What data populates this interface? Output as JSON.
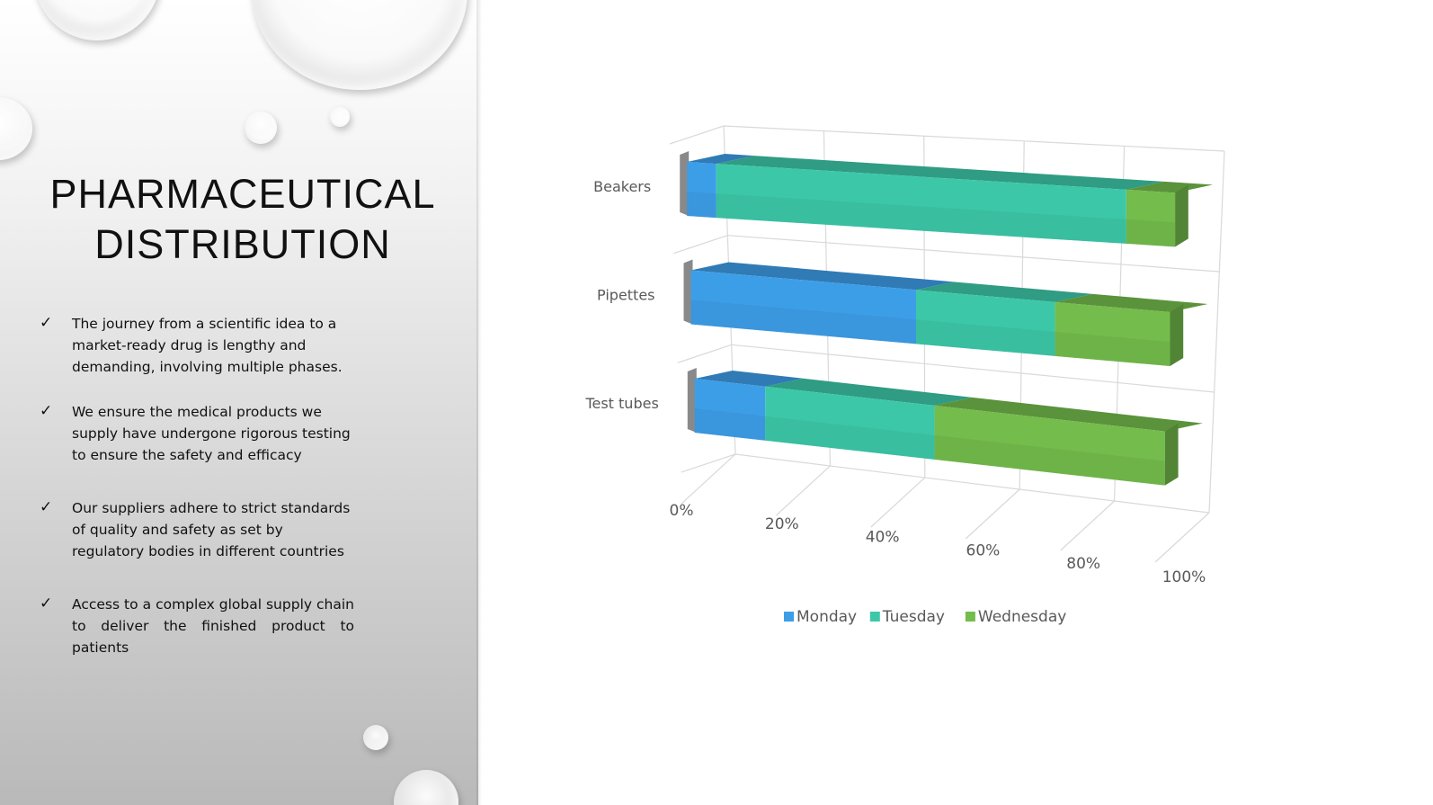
{
  "slide": {
    "title": "PHARMACEUTICAL\nDISTRIBUTION",
    "bullets": [
      "The journey from a scientific idea to a market-ready drug is lengthy and demanding, involving multiple phases.",
      "We ensure the medical products we supply have undergone rigorous testing to ensure the safety and efficacy",
      "Our suppliers adhere to strict standards of quality and safety as set by regulatory bodies in different countries",
      "Access to a complex global supply chain to deliver the finished product to patients"
    ],
    "check_glyph": "✓"
  },
  "chart_data": {
    "type": "bar",
    "subtype": "3d-100%-stacked-horizontal",
    "categories": [
      "Beakers",
      "Pipettes",
      "Test tubes"
    ],
    "series": [
      {
        "name": "Monday",
        "values": [
          6,
          47,
          15
        ],
        "color": "#3d9ee8"
      },
      {
        "name": "Tuesday",
        "values": [
          84,
          29,
          36
        ],
        "color": "#3cc8a8"
      },
      {
        "name": "Wednesday",
        "values": [
          10,
          24,
          49
        ],
        "color": "#74bc4c"
      }
    ],
    "x_ticks": [
      "0%",
      "20%",
      "40%",
      "60%",
      "80%",
      "100%"
    ],
    "xlim": [
      0,
      100
    ],
    "grid": true,
    "legend_position": "bottom"
  }
}
